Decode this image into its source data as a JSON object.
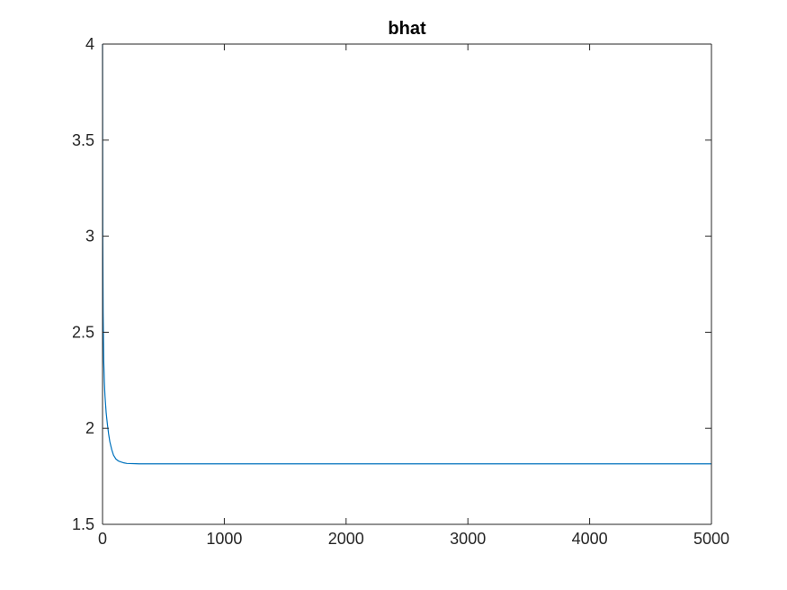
{
  "chart_data": {
    "type": "line",
    "title": "bhat",
    "xlabel": "",
    "ylabel": "",
    "xlim": [
      0,
      5000
    ],
    "ylim": [
      1.5,
      4
    ],
    "x_ticks": [
      0,
      1000,
      2000,
      3000,
      4000,
      5000
    ],
    "x_tick_labels": [
      "0",
      "1000",
      "2000",
      "3000",
      "4000",
      "5000"
    ],
    "y_ticks": [
      1.5,
      2,
      2.5,
      3,
      3.5,
      4
    ],
    "y_tick_labels": [
      "1.5",
      "2",
      "2.5",
      "3",
      "3.5",
      "4"
    ],
    "grid": false,
    "series": [
      {
        "color": "#0072BD",
        "x": [
          0,
          2,
          5,
          10,
          15,
          20,
          30,
          40,
          50,
          60,
          75,
          90,
          110,
          130,
          150,
          175,
          200,
          250,
          300,
          400,
          500,
          1000,
          2000,
          3000,
          4000,
          5000
        ],
        "y": [
          4.0,
          3.0,
          2.6,
          2.35,
          2.24,
          2.17,
          2.08,
          2.02,
          1.97,
          1.93,
          1.89,
          1.86,
          1.84,
          1.83,
          1.825,
          1.82,
          1.817,
          1.816,
          1.815,
          1.815,
          1.815,
          1.815,
          1.815,
          1.815,
          1.815,
          1.815
        ]
      }
    ]
  }
}
